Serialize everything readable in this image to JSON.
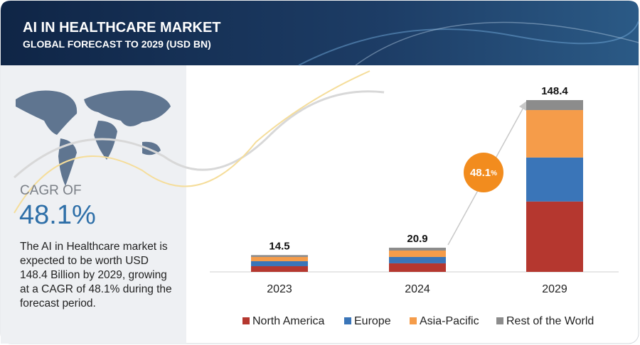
{
  "header": {
    "title": "AI IN HEALTHCARE MARKET",
    "subtitle": "GLOBAL FORECAST TO 2029 (USD BN)"
  },
  "sidebar": {
    "cagr_label": "CAGR OF",
    "cagr_value": "48.1%",
    "description": "The AI in Healthcare market is expected to be worth USD 148.4 Billion by 2029, growing at a CAGR of 48.1% during the forecast period."
  },
  "chart_data": {
    "type": "bar",
    "stacked": true,
    "categories": [
      "2023",
      "2024",
      "2029"
    ],
    "series": [
      {
        "name": "North America",
        "color": "#b5372f",
        "values": [
          4.9,
          7.4,
          60.8
        ]
      },
      {
        "name": "Europe",
        "color": "#3a75b8",
        "values": [
          4.3,
          5.5,
          38.0
        ]
      },
      {
        "name": "Asia-Pacific",
        "color": "#f59c4a",
        "values": [
          3.7,
          5.5,
          41.0
        ]
      },
      {
        "name": "Rest of the World",
        "color": "#8c8c8c",
        "values": [
          1.6,
          2.5,
          8.6
        ]
      }
    ],
    "totals": [
      14.5,
      20.9,
      148.4
    ],
    "cagr_badge": {
      "number": "48.1",
      "unit": "%"
    }
  }
}
